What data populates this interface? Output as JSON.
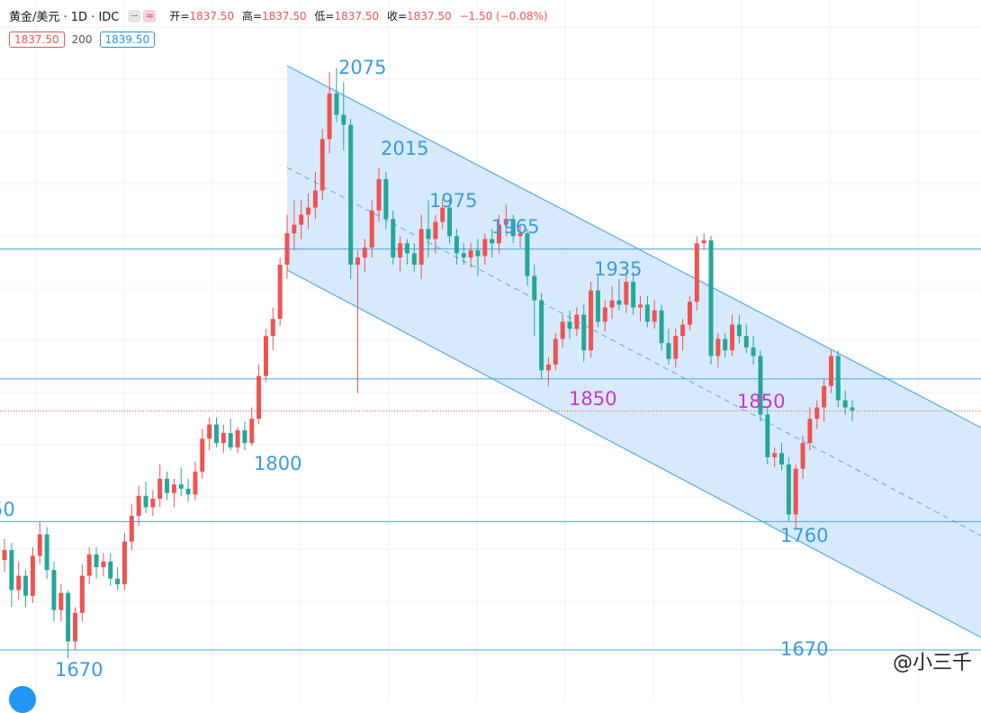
{
  "header": {
    "symbol": "黄金/美元 · 1D · IDC",
    "btn_minus": "−",
    "btn_wave": "≈",
    "open_label": "开=",
    "open": "1837.50",
    "high_label": "高=",
    "high": "1837.50",
    "low_label": "低=",
    "low": "1837.50",
    "close_label": "收=",
    "close": "1837.50",
    "change": "−1.50 (−0.08%)",
    "price_pill": "1837.50",
    "volume_pill": "200",
    "ask_pill": "1839.50"
  },
  "watermark": "@小三千",
  "chart_data": {
    "type": "candlestick",
    "ylim": [
      1640,
      2110
    ],
    "colors": {
      "up": "#ef5350",
      "down": "#26a69a",
      "channel_line": "#5aa9e6",
      "channel_fill": "#cfe6fb",
      "level_line": "#4aa3df",
      "annotation_blue": "#3a9be0",
      "annotation_magenta": "#cc33cc"
    },
    "horizontal_levels": [
      1951,
      1860,
      1760,
      1670
    ],
    "current_price": 1837.5,
    "annotations": [
      {
        "text": "2075",
        "color": "blue"
      },
      {
        "text": "2015",
        "color": "blue"
      },
      {
        "text": "1975",
        "color": "blue"
      },
      {
        "text": "1965",
        "color": "blue"
      },
      {
        "text": "1935",
        "color": "blue"
      },
      {
        "text": "1850",
        "color": "magenta"
      },
      {
        "text": "1850",
        "color": "magenta"
      },
      {
        "text": "1800",
        "color": "blue"
      },
      {
        "text": "1760",
        "color": "blue"
      },
      {
        "text": "1670",
        "color": "blue"
      },
      {
        "text": "1670",
        "color": "blue"
      },
      {
        "text": "50",
        "color": "blue"
      }
    ],
    "candles": [
      [
        1733,
        1748,
        1725,
        1740
      ],
      [
        1740,
        1745,
        1700,
        1712
      ],
      [
        1712,
        1732,
        1705,
        1722
      ],
      [
        1722,
        1726,
        1700,
        1708
      ],
      [
        1708,
        1742,
        1703,
        1736
      ],
      [
        1736,
        1760,
        1730,
        1751
      ],
      [
        1751,
        1756,
        1720,
        1726
      ],
      [
        1726,
        1732,
        1690,
        1698
      ],
      [
        1698,
        1716,
        1690,
        1710
      ],
      [
        1710,
        1712,
        1664,
        1676
      ],
      [
        1676,
        1700,
        1670,
        1696
      ],
      [
        1696,
        1730,
        1690,
        1722
      ],
      [
        1722,
        1742,
        1716,
        1737
      ],
      [
        1737,
        1742,
        1720,
        1728
      ],
      [
        1728,
        1738,
        1722,
        1732
      ],
      [
        1732,
        1738,
        1715,
        1720
      ],
      [
        1720,
        1728,
        1712,
        1716
      ],
      [
        1716,
        1752,
        1712,
        1746
      ],
      [
        1746,
        1772,
        1740,
        1764
      ],
      [
        1764,
        1785,
        1757,
        1778
      ],
      [
        1778,
        1788,
        1766,
        1770
      ],
      [
        1770,
        1782,
        1764,
        1776
      ],
      [
        1776,
        1800,
        1770,
        1790
      ],
      [
        1790,
        1795,
        1775,
        1780
      ],
      [
        1780,
        1790,
        1770,
        1786
      ],
      [
        1786,
        1798,
        1778,
        1783
      ],
      [
        1783,
        1790,
        1774,
        1779
      ],
      [
        1779,
        1802,
        1775,
        1795
      ],
      [
        1795,
        1825,
        1790,
        1818
      ],
      [
        1818,
        1833,
        1810,
        1828
      ],
      [
        1828,
        1833,
        1812,
        1815
      ],
      [
        1815,
        1828,
        1808,
        1822
      ],
      [
        1822,
        1832,
        1810,
        1812
      ],
      [
        1812,
        1826,
        1808,
        1824
      ],
      [
        1824,
        1830,
        1810,
        1815
      ],
      [
        1815,
        1840,
        1813,
        1832
      ],
      [
        1832,
        1870,
        1828,
        1862
      ],
      [
        1862,
        1895,
        1858,
        1890
      ],
      [
        1890,
        1910,
        1880,
        1902
      ],
      [
        1902,
        1945,
        1897,
        1940
      ],
      [
        1940,
        1975,
        1930,
        1962
      ],
      [
        1962,
        1985,
        1950,
        1968
      ],
      [
        1968,
        1985,
        1958,
        1975
      ],
      [
        1975,
        1990,
        1965,
        1980
      ],
      [
        1980,
        2005,
        1972,
        1992
      ],
      [
        1992,
        2035,
        1985,
        2028
      ],
      [
        2028,
        2075,
        2018,
        2060
      ],
      [
        2060,
        2078,
        2040,
        2045
      ],
      [
        2045,
        2068,
        2020,
        2038
      ],
      [
        2038,
        2042,
        1930,
        1940
      ],
      [
        1940,
        1950,
        1850,
        1945
      ],
      [
        1945,
        1958,
        1935,
        1952
      ],
      [
        1952,
        1985,
        1945,
        1978
      ],
      [
        1978,
        2008,
        1970,
        2000
      ],
      [
        2000,
        2005,
        1965,
        1972
      ],
      [
        1972,
        1978,
        1940,
        1945
      ],
      [
        1945,
        1960,
        1935,
        1955
      ],
      [
        1955,
        1958,
        1940,
        1948
      ],
      [
        1948,
        1955,
        1935,
        1940
      ],
      [
        1940,
        1975,
        1930,
        1965
      ],
      [
        1965,
        1985,
        1945,
        1958
      ],
      [
        1958,
        1975,
        1948,
        1970
      ],
      [
        1970,
        1986,
        1965,
        1980
      ],
      [
        1980,
        1985,
        1955,
        1960
      ],
      [
        1960,
        1965,
        1940,
        1948
      ],
      [
        1948,
        1955,
        1940,
        1945
      ],
      [
        1945,
        1955,
        1938,
        1950
      ],
      [
        1950,
        1958,
        1932,
        1946
      ],
      [
        1946,
        1962,
        1940,
        1958
      ],
      [
        1958,
        1965,
        1945,
        1955
      ],
      [
        1955,
        1975,
        1948,
        1968
      ],
      [
        1968,
        1982,
        1960,
        1972
      ],
      [
        1972,
        1975,
        1955,
        1960
      ],
      [
        1960,
        1968,
        1952,
        1962
      ],
      [
        1962,
        1965,
        1925,
        1932
      ],
      [
        1932,
        1940,
        1890,
        1915
      ],
      [
        1915,
        1920,
        1860,
        1866
      ],
      [
        1866,
        1875,
        1855,
        1870
      ],
      [
        1870,
        1892,
        1866,
        1888
      ],
      [
        1888,
        1905,
        1882,
        1900
      ],
      [
        1900,
        1908,
        1888,
        1895
      ],
      [
        1895,
        1910,
        1890,
        1905
      ],
      [
        1905,
        1912,
        1872,
        1880
      ],
      [
        1880,
        1928,
        1875,
        1922
      ],
      [
        1922,
        1932,
        1896,
        1900
      ],
      [
        1900,
        1915,
        1893,
        1910
      ],
      [
        1910,
        1925,
        1902,
        1915
      ],
      [
        1915,
        1930,
        1908,
        1912
      ],
      [
        1912,
        1935,
        1906,
        1928
      ],
      [
        1928,
        1935,
        1905,
        1910
      ],
      [
        1910,
        1918,
        1900,
        1912
      ],
      [
        1912,
        1918,
        1896,
        1900
      ],
      [
        1900,
        1915,
        1895,
        1908
      ],
      [
        1908,
        1912,
        1880,
        1885
      ],
      [
        1885,
        1895,
        1870,
        1874
      ],
      [
        1874,
        1895,
        1868,
        1890
      ],
      [
        1890,
        1902,
        1880,
        1898
      ],
      [
        1898,
        1918,
        1894,
        1914
      ],
      [
        1914,
        1960,
        1908,
        1955
      ],
      [
        1955,
        1962,
        1950,
        1957
      ],
      [
        1957,
        1960,
        1870,
        1876
      ],
      [
        1876,
        1892,
        1868,
        1888
      ],
      [
        1888,
        1892,
        1875,
        1880
      ],
      [
        1880,
        1905,
        1876,
        1898
      ],
      [
        1898,
        1905,
        1885,
        1890
      ],
      [
        1890,
        1898,
        1878,
        1882
      ],
      [
        1882,
        1890,
        1870,
        1876
      ],
      [
        1876,
        1880,
        1830,
        1835
      ],
      [
        1835,
        1840,
        1800,
        1805
      ],
      [
        1805,
        1812,
        1798,
        1808
      ],
      [
        1808,
        1815,
        1796,
        1800
      ],
      [
        1800,
        1805,
        1760,
        1765
      ],
      [
        1765,
        1800,
        1755,
        1797
      ],
      [
        1797,
        1820,
        1790,
        1815
      ],
      [
        1815,
        1840,
        1810,
        1832
      ],
      [
        1832,
        1845,
        1825,
        1840
      ],
      [
        1840,
        1860,
        1830,
        1855
      ],
      [
        1855,
        1880,
        1850,
        1876
      ],
      [
        1876,
        1880,
        1840,
        1845
      ],
      [
        1845,
        1852,
        1835,
        1840
      ],
      [
        1840,
        1845,
        1830,
        1838
      ]
    ]
  }
}
